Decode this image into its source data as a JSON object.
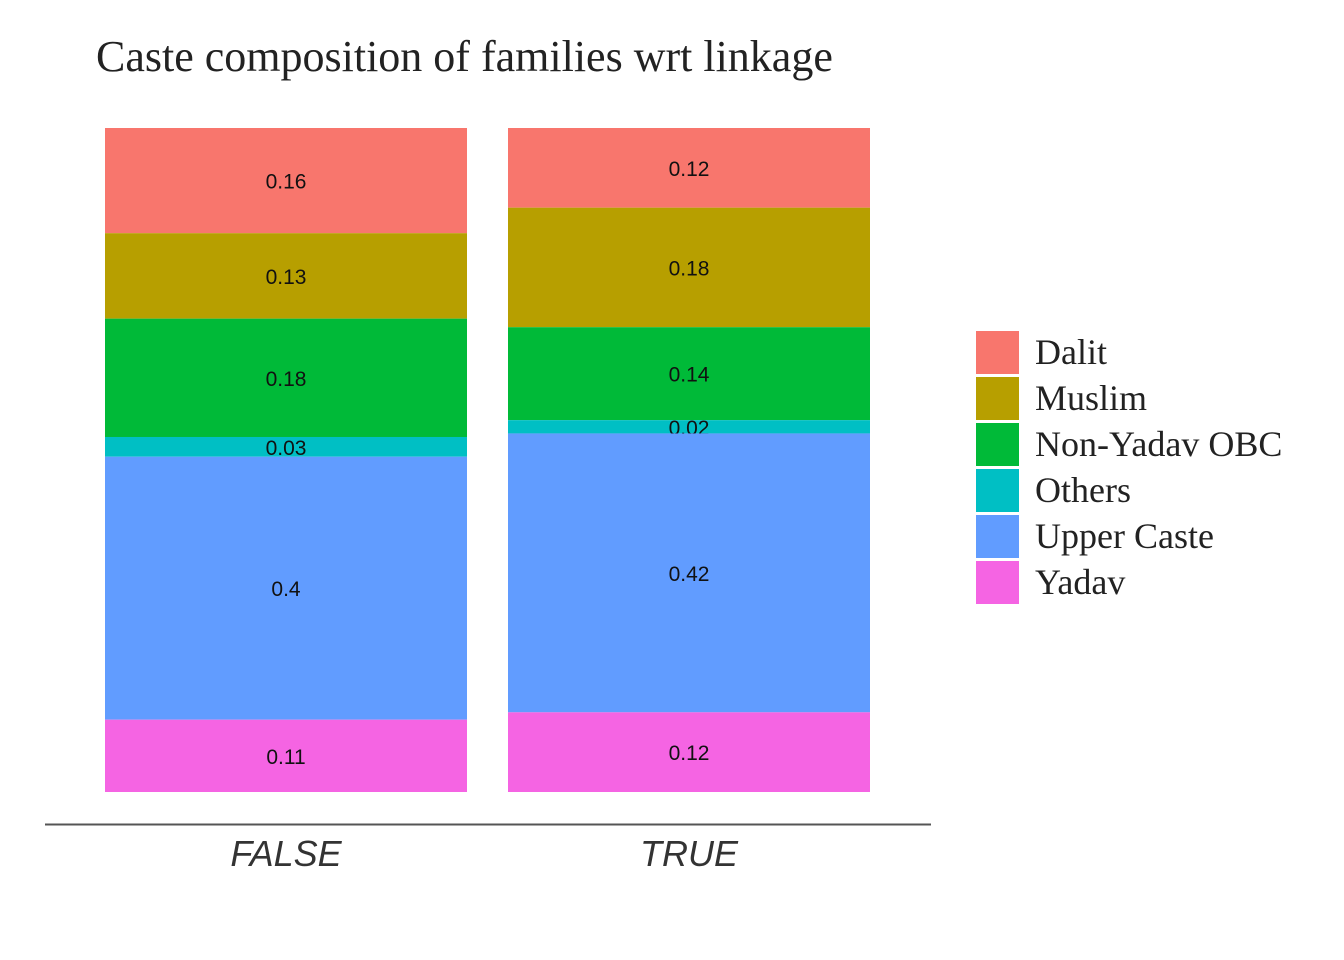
{
  "chart_data": {
    "type": "bar",
    "stacked": true,
    "title": "Caste composition of families wrt linkage",
    "xlabel": "",
    "ylabel": "",
    "ylim": [
      0,
      1
    ],
    "grid": false,
    "legend_position": "right",
    "categories": [
      "FALSE",
      "TRUE"
    ],
    "series": [
      {
        "name": "Dalit",
        "color": "#F8766D",
        "values": [
          0.16,
          0.12
        ],
        "labels": [
          "0.16",
          "0.12"
        ]
      },
      {
        "name": "Muslim",
        "color": "#B79F00",
        "values": [
          0.13,
          0.18
        ],
        "labels": [
          "0.13",
          "0.18"
        ]
      },
      {
        "name": "Non-Yadav OBC",
        "color": "#00BA38",
        "values": [
          0.18,
          0.14
        ],
        "labels": [
          "0.18",
          "0.14"
        ]
      },
      {
        "name": "Others",
        "color": "#00BFC4",
        "values": [
          0.03,
          0.02
        ],
        "labels": [
          "0.03",
          "0.02"
        ]
      },
      {
        "name": "Upper Caste",
        "color": "#619CFF",
        "values": [
          0.4,
          0.42
        ],
        "labels": [
          "0.4",
          "0.42"
        ]
      },
      {
        "name": "Yadav",
        "color": "#F564E3",
        "values": [
          0.11,
          0.12
        ],
        "labels": [
          "0.11",
          "0.12"
        ]
      }
    ]
  }
}
